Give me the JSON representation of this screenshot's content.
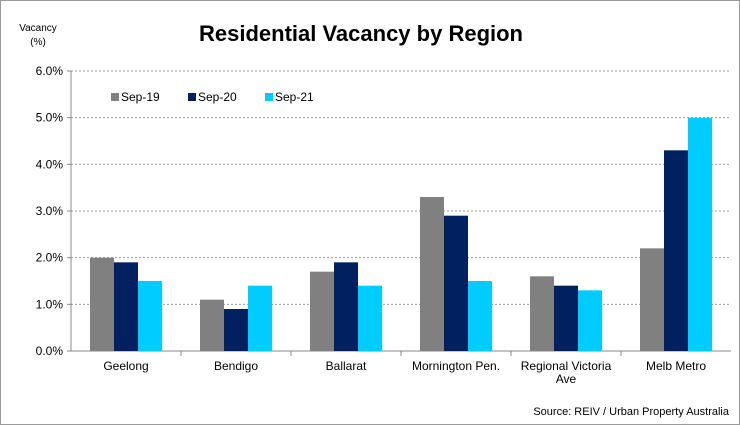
{
  "chart_data": {
    "type": "bar",
    "title": "Residential Vacancy by Region",
    "ylabel": "Vacancy (%)",
    "ylabel_lines": [
      "Vacancy",
      "(%)"
    ],
    "xlabel": "",
    "ylim": [
      0,
      6
    ],
    "yticks": [
      "0.0%",
      "1.0%",
      "2.0%",
      "3.0%",
      "4.0%",
      "5.0%",
      "6.0%"
    ],
    "grid": true,
    "legend_position": "top-left",
    "categories": [
      [
        "Geelong"
      ],
      [
        "Bendigo"
      ],
      [
        "Ballarat"
      ],
      [
        "Mornington Pen."
      ],
      [
        "Regional Victoria",
        "Ave"
      ],
      [
        "Melb Metro"
      ]
    ],
    "series": [
      {
        "name": "Sep-19",
        "color": "#808080",
        "values": [
          2.0,
          1.1,
          1.7,
          3.3,
          1.6,
          2.2
        ]
      },
      {
        "name": "Sep-20",
        "color": "#002060",
        "values": [
          1.9,
          0.9,
          1.9,
          2.9,
          1.4,
          4.3
        ]
      },
      {
        "name": "Sep-21",
        "color": "#00CCFF",
        "values": [
          1.5,
          1.4,
          1.4,
          1.5,
          1.3,
          5.0
        ]
      }
    ],
    "source": "Source: REIV / Urban Property Australia"
  }
}
